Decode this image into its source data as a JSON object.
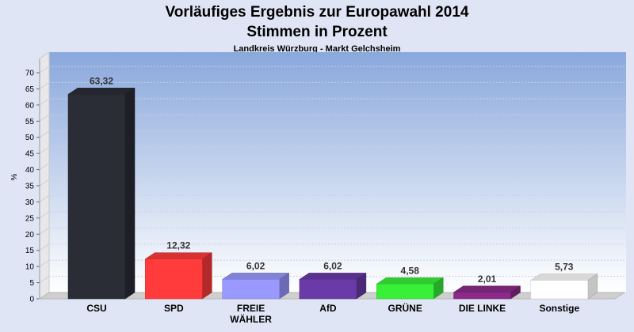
{
  "chart_data": {
    "type": "bar",
    "title_line1": "Vorläufiges Ergebnis zur Europawahl 2014",
    "title_line2": "Stimmen in Prozent",
    "subtitle": "Landkreis Würzburg - Markt Gelchsheim",
    "ylabel": "%",
    "ylim": [
      0,
      70
    ],
    "yticks": [
      "0",
      "5",
      "10",
      "15",
      "20",
      "25",
      "30",
      "35",
      "40",
      "45",
      "50",
      "55",
      "60",
      "65",
      "70"
    ],
    "categories": [
      "CSU",
      "SPD",
      "FREIE\nWÄHLER",
      "AfD",
      "GRÜNE",
      "DIE LINKE",
      "Sonstige"
    ],
    "values": [
      63.32,
      12.32,
      6.02,
      6.02,
      4.58,
      2.01,
      5.73
    ],
    "value_labels": [
      "63,32",
      "12,32",
      "6,02",
      "6,02",
      "4,58",
      "2,01",
      "5,73"
    ],
    "colors": [
      "#2b2d36",
      "#ff3b3b",
      "#9999ff",
      "#6a3aa8",
      "#38f038",
      "#8b2a8b",
      "#ffffff"
    ],
    "grid": true,
    "legend": "none"
  }
}
